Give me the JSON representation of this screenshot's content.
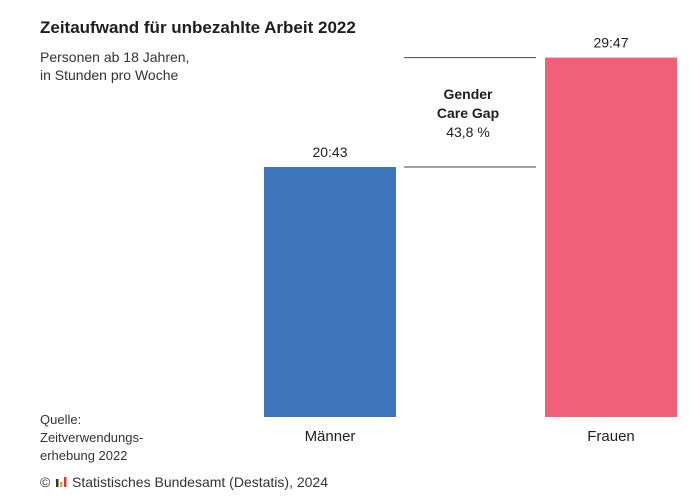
{
  "chart_data": {
    "type": "bar",
    "title": "Zeitaufwand für unbezahlte Arbeit 2022",
    "subtitle": [
      "Personen ab 18 Jahren,",
      "in Stunden pro Woche"
    ],
    "xlabel": "",
    "ylabel": "",
    "categories": [
      "Männer",
      "Frauen"
    ],
    "values": [
      20.717,
      29.783
    ],
    "data_labels": [
      "20:43",
      "29:47"
    ],
    "colors": [
      "#3e74ba",
      "#f06178"
    ],
    "ylim": [
      0,
      30
    ],
    "grid": false,
    "annotation": {
      "title": [
        "Gender",
        "Care Gap"
      ],
      "value": "43,8 %"
    },
    "source": [
      "Quelle:",
      "Zeitverwendungs-",
      "erhebung 2022"
    ],
    "copyright": "Statistisches Bundesamt (Destatis), 2024"
  }
}
